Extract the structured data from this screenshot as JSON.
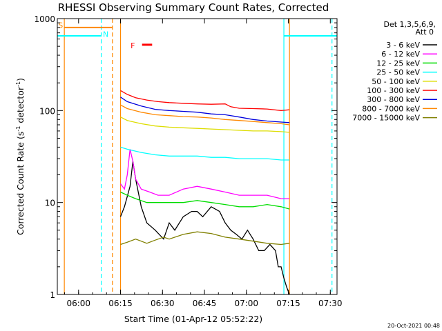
{
  "chart_data": {
    "type": "line",
    "title": "RHESSI Observing Summary Count Rates, Corrected",
    "xlabel": "Start Time (01-Apr-12 05:52:22)",
    "ylabel": "Corrected Count Rate (s-1 detector-1)",
    "ylabel_parts": {
      "a": "Corrected Count Rate (s",
      "sup1": "-1",
      "b": " detector",
      "sup2": "-1",
      "c": ")"
    },
    "x_unit": "minutes since 05:52:22",
    "xlim": [
      0,
      100
    ],
    "ylim": [
      1,
      1000
    ],
    "yscale": "log",
    "x_ticks": [
      {
        "label": "06:00",
        "value": 7.6
      },
      {
        "label": "06:15",
        "value": 22.6
      },
      {
        "label": "06:30",
        "value": 37.6
      },
      {
        "label": "06:45",
        "value": 52.6
      },
      {
        "label": "07:00",
        "value": 67.6
      },
      {
        "label": "07:15",
        "value": 82.6
      },
      {
        "label": "07:30",
        "value": 97.6
      }
    ],
    "y_ticks": [
      {
        "label": "1",
        "value": 1
      },
      {
        "label": "10",
        "value": 10
      },
      {
        "label": "100",
        "value": 100
      },
      {
        "label": "1000",
        "value": 1000
      }
    ],
    "legend_header": [
      "Det 1,3,5,6,9,",
      "Att 0"
    ],
    "series": [
      {
        "name": "3 - 6 keV",
        "color": "#000000",
        "x": [
          22.6,
          24,
          26,
          27,
          28,
          30,
          32,
          35,
          38,
          40,
          42,
          45,
          48,
          50,
          52,
          55,
          58,
          60,
          62,
          64,
          66,
          68,
          70,
          72,
          74,
          76,
          78,
          79,
          80,
          81,
          82,
          83
        ],
        "values": [
          7,
          9,
          15,
          28,
          18,
          9,
          6,
          5,
          4,
          6,
          5,
          7,
          8,
          8,
          7,
          9,
          8,
          6,
          5,
          4.5,
          4,
          5,
          4,
          3,
          3,
          3.5,
          3,
          2,
          2,
          1.5,
          1.2,
          1
        ]
      },
      {
        "name": "6 - 12 keV",
        "color": "#ff00ff",
        "x": [
          22.6,
          24,
          25,
          26,
          27,
          28,
          30,
          33,
          36,
          40,
          45,
          50,
          55,
          60,
          65,
          70,
          75,
          80,
          83
        ],
        "values": [
          16,
          14,
          20,
          38,
          28,
          18,
          14,
          13,
          12,
          12,
          14,
          15,
          14,
          13,
          12,
          12,
          12,
          11,
          11
        ]
      },
      {
        "name": "12 - 25 keV",
        "color": "#00dd00",
        "x": [
          22.6,
          25,
          28,
          32,
          36,
          40,
          45,
          50,
          55,
          60,
          65,
          70,
          75,
          80,
          83
        ],
        "values": [
          13,
          12,
          11,
          10,
          10,
          10,
          10,
          10.5,
          10,
          9.5,
          9,
          9,
          9.5,
          9,
          8.5
        ]
      },
      {
        "name": "25 - 50 keV",
        "color": "#00ffff",
        "x": [
          22.6,
          25,
          30,
          35,
          40,
          45,
          50,
          55,
          60,
          65,
          70,
          75,
          80,
          83
        ],
        "values": [
          40,
          38,
          35,
          33,
          32,
          32,
          32,
          31,
          31,
          30,
          30,
          30,
          29,
          29
        ]
      },
      {
        "name": "50 - 100 keV",
        "color": "#dddd00",
        "x": [
          22.6,
          25,
          30,
          35,
          40,
          45,
          50,
          55,
          60,
          65,
          70,
          75,
          80,
          83
        ],
        "values": [
          85,
          78,
          72,
          68,
          66,
          65,
          64,
          63,
          62,
          61,
          60,
          60,
          59,
          58
        ]
      },
      {
        "name": "100 - 300 keV",
        "color": "#ff0000",
        "x": [
          22.6,
          25,
          28,
          32,
          36,
          40,
          45,
          50,
          55,
          60,
          62,
          65,
          70,
          75,
          80,
          83
        ],
        "values": [
          165,
          150,
          138,
          130,
          125,
          122,
          120,
          118,
          117,
          118,
          110,
          106,
          105,
          104,
          100,
          102
        ]
      },
      {
        "name": "300 - 800 keV",
        "color": "#0000dd",
        "x": [
          22.6,
          25,
          30,
          35,
          40,
          45,
          50,
          55,
          60,
          65,
          70,
          75,
          80,
          83
        ],
        "values": [
          140,
          125,
          112,
          103,
          100,
          98,
          96,
          92,
          90,
          85,
          80,
          77,
          75,
          74
        ]
      },
      {
        "name": "800 - 7000 keV",
        "color": "#ff8800",
        "x": [
          22.6,
          25,
          30,
          35,
          40,
          45,
          50,
          55,
          60,
          65,
          70,
          75,
          80,
          83
        ],
        "values": [
          115,
          105,
          96,
          90,
          88,
          86,
          85,
          83,
          80,
          78,
          76,
          74,
          72,
          70
        ]
      },
      {
        "name": "7000 - 15000 keV",
        "color": "#808000",
        "x": [
          22.6,
          25,
          28,
          32,
          35,
          38,
          40,
          45,
          50,
          55,
          60,
          65,
          70,
          75,
          80,
          83
        ],
        "values": [
          3.5,
          3.7,
          4,
          3.6,
          3.9,
          4.2,
          4,
          4.5,
          4.8,
          4.6,
          4.2,
          4,
          3.8,
          3.6,
          3.5,
          3.6
        ]
      }
    ],
    "annotations": [
      {
        "type": "vline",
        "color": "#ff8800",
        "dash": false,
        "x": 2.5
      },
      {
        "type": "vline",
        "color": "#00ffff",
        "dash": true,
        "x": 15.7
      },
      {
        "type": "vline",
        "color": "#ff8800",
        "dash": true,
        "x": 19.7
      },
      {
        "type": "vline",
        "color": "#ff8800",
        "dash": false,
        "x": 22.6
      },
      {
        "type": "vline",
        "color": "#00ffff",
        "dash": false,
        "x": 81
      },
      {
        "type": "vline",
        "color": "#ff8800",
        "dash": false,
        "x": 83
      },
      {
        "type": "vline",
        "color": "#00ffff",
        "dash": true,
        "x": 98.2
      },
      {
        "type": "hline",
        "color": "#00ffff",
        "x1": 0,
        "x2": 15.7,
        "y": 650
      },
      {
        "type": "hline",
        "color": "#ff8800",
        "x1": 2.5,
        "x2": 19.7,
        "y": 800
      },
      {
        "type": "hline",
        "color": "#00ffff",
        "x1": 81,
        "x2": 100,
        "y": 650
      },
      {
        "type": "hline",
        "color": "#ff0000",
        "x1": 30.3,
        "x2": 33.9,
        "y": 520
      }
    ],
    "markers": [
      {
        "label": "S",
        "color": "#ff8800",
        "x": 0.3,
        "y": 850
      },
      {
        "label": "N",
        "color": "#00ffff",
        "x": 16.3,
        "y": 680
      },
      {
        "label": "F",
        "color": "#ff0000",
        "x": 26.2,
        "y": 510
      }
    ]
  },
  "timestamp": "20-Oct-2021 00:48"
}
